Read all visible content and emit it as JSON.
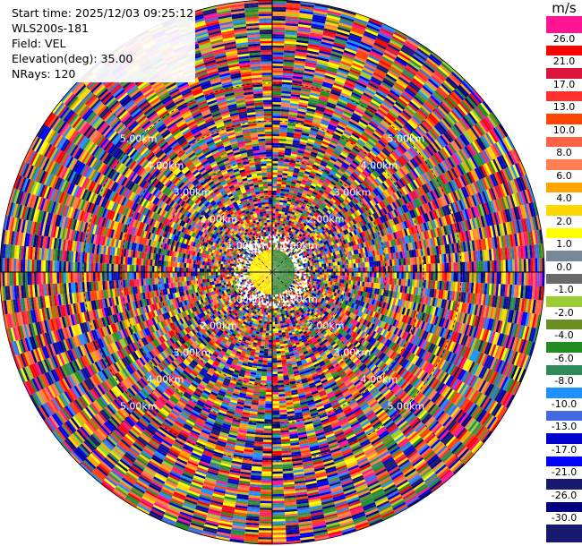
{
  "info": {
    "start_time": "Start time: 2025/12/03 09:25:12",
    "instrument": "WLS200s-181",
    "field": "Field: VEL",
    "elevation": "Elevation(deg): 35.00",
    "nrays": "NRays: 120"
  },
  "chart_data": {
    "type": "heatmap",
    "subtype": "polar-ppi",
    "field": "VEL",
    "elevation_deg": 35.0,
    "n_rays": 120,
    "max_range_km": 7.2,
    "range_ring_labels": [
      "1.00km",
      "2.00km",
      "3.00km",
      "4.00km",
      "5.00km"
    ],
    "near_field_pattern": {
      "receding_sector": "yellow",
      "approaching_sector": "green"
    },
    "colorbar": {
      "unit": "m/s",
      "labels": [
        "26.0",
        "21.0",
        "17.0",
        "13.0",
        "10.0",
        "8.0",
        "6.0",
        "4.0",
        "2.0",
        "1.0",
        "0.0",
        "-1.0",
        "-2.0",
        "-4.0",
        "-6.0",
        "-8.0",
        "-10.0",
        "-13.0",
        "-17.0",
        "-21.0",
        "-26.0",
        "-30.0"
      ],
      "colors": [
        "#ff1493",
        "#ff0000",
        "#dc143c",
        "#ff3030",
        "#ff4500",
        "#ff6347",
        "#ff7f50",
        "#ffa500",
        "#ffd700",
        "#ffff00",
        "#778899",
        "#696969",
        "#9acd32",
        "#6b8e23",
        "#228b22",
        "#2e8b57",
        "#1e90ff",
        "#4169e1",
        "#0000cd",
        "#0000ff",
        "#191970",
        "#000080",
        "#191970"
      ]
    }
  }
}
